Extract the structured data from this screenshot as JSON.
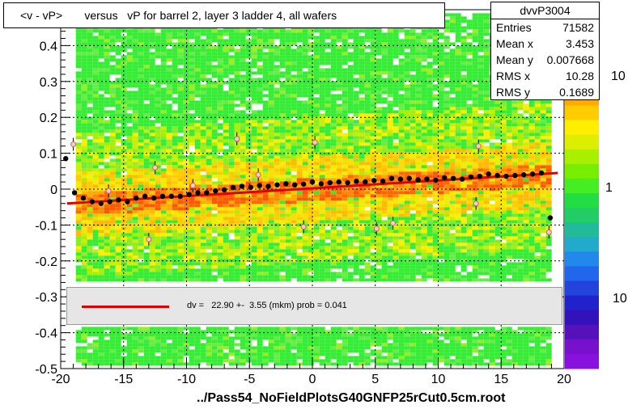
{
  "title": "<v - vP>       versus   vP for barrel 2, layer 3 ladder 4, all wafers",
  "stats": {
    "name": "dvvP3004",
    "rows": [
      {
        "label": "Entries",
        "value": "71582"
      },
      {
        "label": "Mean x",
        "value": "3.453"
      },
      {
        "label": "Mean y",
        "value": "0.007668"
      },
      {
        "label": "RMS x",
        "value": "10.28"
      },
      {
        "label": "RMS y",
        "value": "0.1689"
      }
    ]
  },
  "legend_text": "dv =   22.90 +-  3.55 (mkm) prob = 0.041",
  "footer": "../Pass54_NoFieldPlotsG40GNFP25rCut0.5cm.root",
  "colorbar_labels": [
    "10",
    "1",
    "10"
  ],
  "colors": {
    "fit": "#e00000",
    "band": "#ff9900",
    "background_fill": "#22dd22"
  },
  "chart_data": {
    "type": "scatter",
    "xlim": [
      -20,
      20
    ],
    "ylim": [
      -0.5,
      0.5
    ],
    "x_ticks": [
      -20,
      -15,
      -10,
      -5,
      0,
      5,
      10,
      15,
      20
    ],
    "y_ticks": [
      -0.5,
      -0.4,
      -0.3,
      -0.2,
      -0.1,
      0,
      0.1,
      0.2,
      0.3,
      0.4,
      0.5
    ],
    "x_tick_labels": [
      "-20",
      "-15",
      "-10",
      "-5",
      "0",
      "5",
      "10",
      "15",
      "20"
    ],
    "y_tick_labels": [
      "-0.5",
      "-0.4",
      "-0.3",
      "-0.2",
      "-0.1",
      "0",
      "0.1",
      "0.2",
      "0.3",
      "0.4",
      "0.5"
    ],
    "grid": true,
    "fit_line": {
      "x": [
        -19.5,
        19.5
      ],
      "y": [
        -0.04,
        0.045
      ]
    },
    "profile_means": {
      "x": [
        -19.6,
        -18.9,
        -18.2,
        -17.5,
        -16.8,
        -16.1,
        -15.4,
        -14.7,
        -14.0,
        -13.3,
        -12.6,
        -11.9,
        -11.2,
        -10.5,
        -9.8,
        -9.1,
        -8.4,
        -7.7,
        -7.0,
        -6.3,
        -5.6,
        -4.9,
        -4.2,
        -3.5,
        -2.8,
        -2.1,
        -1.4,
        -0.7,
        0.0,
        0.7,
        1.4,
        2.1,
        2.8,
        3.5,
        4.2,
        4.9,
        5.6,
        6.3,
        7.0,
        7.7,
        8.4,
        9.1,
        9.8,
        10.5,
        11.2,
        11.9,
        12.6,
        13.3,
        14.0,
        14.7,
        15.4,
        16.1,
        16.8,
        17.5,
        18.2,
        18.9
      ],
      "y": [
        0.085,
        -0.01,
        -0.025,
        -0.035,
        -0.04,
        -0.035,
        -0.03,
        -0.035,
        -0.025,
        -0.02,
        -0.025,
        -0.02,
        -0.02,
        -0.02,
        -0.015,
        -0.01,
        -0.01,
        -0.005,
        -0.002,
        0.005,
        0.008,
        0.005,
        0.01,
        0.008,
        0.012,
        0.015,
        0.012,
        0.014,
        0.02,
        0.015,
        0.018,
        0.02,
        0.018,
        0.022,
        0.02,
        0.024,
        0.022,
        0.03,
        0.028,
        0.03,
        0.026,
        0.028,
        0.025,
        0.032,
        0.03,
        0.028,
        0.034,
        0.036,
        0.042,
        0.038,
        0.036,
        0.038,
        0.04,
        0.042,
        0.045,
        -0.08
      ]
    },
    "outliers": {
      "x": [
        -19.0,
        -16.2,
        -13.0,
        -12.5,
        -9.5,
        -6.0,
        -4.3,
        -0.7,
        0.2,
        5.1,
        6.4,
        13.0,
        13.2,
        18.8
      ],
      "y": [
        0.125,
        -0.005,
        -0.14,
        0.06,
        0.01,
        0.14,
        0.04,
        -0.105,
        0.13,
        -0.11,
        -0.095,
        -0.04,
        0.12,
        -0.12
      ]
    }
  }
}
